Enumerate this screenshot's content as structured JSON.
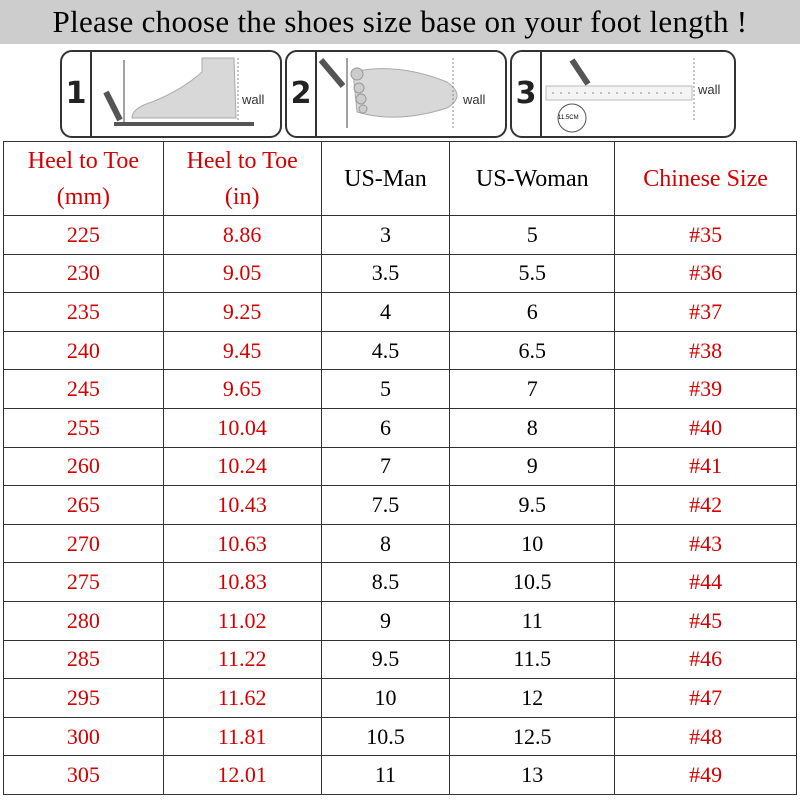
{
  "title": "Please choose the shoes size base on your foot length !",
  "steps": [
    {
      "number": "1",
      "wall_label": "wall"
    },
    {
      "number": "2",
      "wall_label": "wall"
    },
    {
      "number": "3",
      "wall_label": "wall",
      "measure_label": "11.5CM"
    }
  ],
  "colors": {
    "header_red": "#d40000",
    "title_bar": "#cdcdcd"
  },
  "table": {
    "headers": [
      {
        "line1": "Heel to Toe",
        "line2": "(mm)"
      },
      {
        "line1": "Heel to Toe",
        "line2": "(in)"
      },
      {
        "line1": "US-Man",
        "line2": ""
      },
      {
        "line1": "US-Woman",
        "line2": ""
      },
      {
        "line1": "Chinese Size",
        "line2": ""
      }
    ],
    "rows": [
      [
        "225",
        "8.86",
        "3",
        "5",
        "#35"
      ],
      [
        "230",
        "9.05",
        "3.5",
        "5.5",
        "#36"
      ],
      [
        "235",
        "9.25",
        "4",
        "6",
        "#37"
      ],
      [
        "240",
        "9.45",
        "4.5",
        "6.5",
        "#38"
      ],
      [
        "245",
        "9.65",
        "5",
        "7",
        "#39"
      ],
      [
        "255",
        "10.04",
        "6",
        "8",
        "#40"
      ],
      [
        "260",
        "10.24",
        "7",
        "9",
        "#41"
      ],
      [
        "265",
        "10.43",
        "7.5",
        "9.5",
        "#42"
      ],
      [
        "270",
        "10.63",
        "8",
        "10",
        "#43"
      ],
      [
        "275",
        "10.83",
        "8.5",
        "10.5",
        "#44"
      ],
      [
        "280",
        "11.02",
        "9",
        "11",
        "#45"
      ],
      [
        "285",
        "11.22",
        "9.5",
        "11.5",
        "#46"
      ],
      [
        "295",
        "11.62",
        "10",
        "12",
        "#47"
      ],
      [
        "300",
        "11.81",
        "10.5",
        "12.5",
        "#48"
      ],
      [
        "305",
        "12.01",
        "11",
        "13",
        "#49"
      ]
    ]
  }
}
